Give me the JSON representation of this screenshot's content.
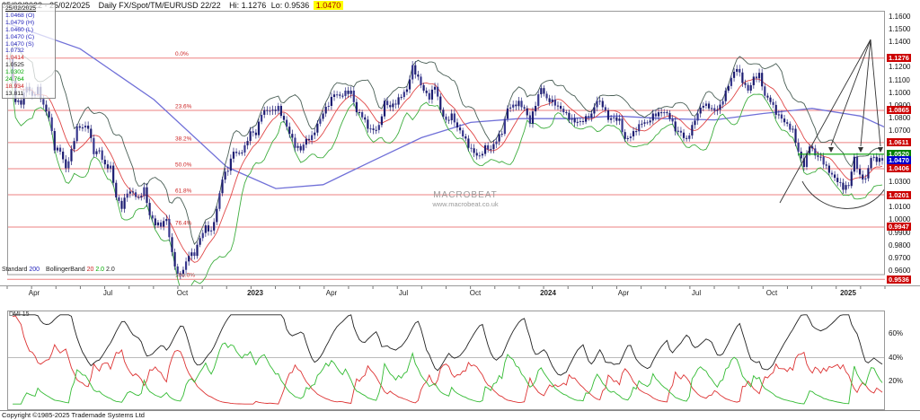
{
  "header": {
    "date_range": "25/02/2022 - 25/02/2025",
    "instrument": "Daily FX/Spot/TM/EURUSD 22/22",
    "hi": "Hi: 1.1276",
    "lo": "Lo: 0.9536",
    "last": "1.0470"
  },
  "legend_box": {
    "date": "25/02/2025",
    "rows": [
      {
        "text": "1.0468 (O)",
        "color": "#2222bb"
      },
      {
        "text": "1.0479 (H)",
        "color": "#2222bb"
      },
      {
        "text": "1.0460 (L)",
        "color": "#2222bb"
      },
      {
        "text": "1.0470 (C)",
        "color": "#2222bb"
      },
      {
        "text": "1.0470 (S)",
        "color": "#2222bb"
      },
      {
        "text": "1.0732",
        "color": "#2222bb"
      },
      {
        "text": "1.0414",
        "color": "#cc2222"
      },
      {
        "text": "1.0525",
        "color": "#111111"
      },
      {
        "text": "1.0302",
        "color": "#00aa00"
      },
      {
        "text": "24.764",
        "color": "#00aa00"
      },
      {
        "text": "18.934",
        "color": "#cc2222"
      },
      {
        "text": "13.811",
        "color": "#111111"
      }
    ]
  },
  "watermark": {
    "title": "MACROBEAT",
    "url": "www.macrobeat.co.uk"
  },
  "indicator_legend": {
    "segments": [
      {
        "text": "Standard ",
        "color": "#222222"
      },
      {
        "text": "200",
        "color": "#2222bb"
      },
      {
        "text": " BollingerBand ",
        "color": "#222222"
      },
      {
        "text": "20",
        "color": "#cc2222"
      },
      {
        "text": " 2.0",
        "color": "#00aa00"
      },
      {
        "text": " 2.0",
        "color": "#222222"
      }
    ]
  },
  "dmi_panel": {
    "label": "DMI 15",
    "ticks": [
      {
        "text": "60%",
        "v": 60
      },
      {
        "text": "40%",
        "v": 40
      },
      {
        "text": "20%",
        "v": 20
      }
    ]
  },
  "footer": {
    "copyright": "Copyright ©1985-2025 Trademade Systems Ltd"
  },
  "time_axis": {
    "labels": [
      {
        "text": "Apr",
        "f": 0.031
      },
      {
        "text": "Jul",
        "f": 0.115
      },
      {
        "text": "Oct",
        "f": 0.2
      },
      {
        "text": "2023",
        "f": 0.282,
        "bold": true
      },
      {
        "text": "Apr",
        "f": 0.369
      },
      {
        "text": "Jul",
        "f": 0.451
      },
      {
        "text": "Oct",
        "f": 0.533
      },
      {
        "text": "2024",
        "f": 0.616,
        "bold": true
      },
      {
        "text": "Apr",
        "f": 0.702
      },
      {
        "text": "Jul",
        "f": 0.785
      },
      {
        "text": "Oct",
        "f": 0.871
      },
      {
        "text": "2025",
        "f": 0.958,
        "bold": true
      }
    ]
  },
  "price_axis": {
    "plain_ticks": [
      1.16,
      1.15,
      1.14,
      1.12,
      1.11,
      1.1,
      1.09,
      1.08,
      1.07,
      1.03,
      1.01,
      1.0,
      0.99,
      0.98,
      0.97,
      0.96
    ],
    "highlights": [
      {
        "v": 1.1276,
        "bg": "#cc0000"
      },
      {
        "v": 1.0865,
        "bg": "#cc0000"
      },
      {
        "v": 1.0611,
        "bg": "#cc0000"
      },
      {
        "v": 1.052,
        "bg": "#008000"
      },
      {
        "v": 1.047,
        "bg": "#0000cc"
      },
      {
        "v": 1.0406,
        "bg": "#cc0000"
      },
      {
        "v": 1.0201,
        "bg": "#cc0000"
      },
      {
        "v": 0.9947,
        "bg": "#cc0000"
      },
      {
        "v": 0.9536,
        "bg": "#cc0000"
      }
    ]
  },
  "chart_data": {
    "type": "candlestick",
    "title": "Daily FX/Spot/TM/EURUSD",
    "x_start": "25/02/2022",
    "x_end": "25/02/2025",
    "hi": 1.1276,
    "lo": 0.9536,
    "last_close": 1.047,
    "axis": {
      "price_top": 1.16483,
      "price_bottom": 0.95727
    },
    "close_weekly": [
      1.127,
      1.093,
      1.091,
      1.105,
      1.098,
      1.105,
      1.091,
      1.081,
      1.055,
      1.054,
      1.041,
      1.056,
      1.074,
      1.073,
      1.072,
      1.052,
      1.055,
      1.044,
      1.043,
      1.018,
      1.009,
      1.021,
      1.022,
      1.018,
      1.026,
      1.004,
      0.996,
      0.995,
      1.001,
      0.975,
      0.958,
      0.961,
      0.972,
      0.972,
      0.986,
      0.996,
      0.992,
      1.009,
      1.032,
      1.039,
      1.054,
      1.053,
      1.059,
      1.07,
      1.067,
      1.083,
      1.086,
      1.087,
      1.09,
      1.079,
      1.068,
      1.057,
      1.055,
      1.064,
      1.067,
      1.076,
      1.084,
      1.09,
      1.099,
      1.098,
      1.102,
      1.102,
      1.085,
      1.081,
      1.072,
      1.071,
      1.075,
      1.094,
      1.089,
      1.091,
      1.097,
      1.103,
      1.122,
      1.113,
      1.102,
      1.095,
      1.105,
      1.087,
      1.079,
      1.084,
      1.073,
      1.066,
      1.057,
      1.053,
      1.051,
      1.059,
      1.056,
      1.062,
      1.068,
      1.088,
      1.091,
      1.094,
      1.088,
      1.076,
      1.09,
      1.104,
      1.096,
      1.095,
      1.09,
      1.085,
      1.079,
      1.077,
      1.078,
      1.082,
      1.084,
      1.094,
      1.089,
      1.079,
      1.081,
      1.08,
      1.064,
      1.066,
      1.07,
      1.076,
      1.077,
      1.084,
      1.085,
      1.085,
      1.08,
      1.07,
      1.069,
      1.064,
      1.075,
      1.084,
      1.09,
      1.088,
      1.086,
      1.091,
      1.102,
      1.112,
      1.119,
      1.108,
      1.102,
      1.113,
      1.116,
      1.098,
      1.093,
      1.083,
      1.08,
      1.076,
      1.072,
      1.054,
      1.042,
      1.058,
      1.051,
      1.05,
      1.043,
      1.036,
      1.03,
      1.024,
      1.027,
      1.05,
      1.036,
      1.033,
      1.049,
      1.046,
      1.047
    ],
    "ma200_points": [
      [
        0,
        1.155
      ],
      [
        0.083,
        1.135
      ],
      [
        0.167,
        1.095
      ],
      [
        0.25,
        1.042
      ],
      [
        0.306,
        1.025
      ],
      [
        0.36,
        1.028
      ],
      [
        0.417,
        1.047
      ],
      [
        0.472,
        1.065
      ],
      [
        0.528,
        1.077
      ],
      [
        0.583,
        1.08
      ],
      [
        0.639,
        1.08
      ],
      [
        0.694,
        1.082
      ],
      [
        0.75,
        1.08
      ],
      [
        0.806,
        1.079
      ],
      [
        0.861,
        1.084
      ],
      [
        0.917,
        1.088
      ],
      [
        0.972,
        1.082
      ],
      [
        1,
        1.0732
      ]
    ],
    "bollinger": {
      "period": 20,
      "mult": 2.0,
      "last_mid": 1.0414,
      "last_upper": 1.0525,
      "last_lower": 1.0302
    },
    "fib_levels": [
      {
        "pct": "0.0%",
        "price": 1.1276
      },
      {
        "pct": "23.6%",
        "price": 1.0865
      },
      {
        "pct": "38.2%",
        "price": 1.0611
      },
      {
        "pct": "50.0%",
        "price": 1.0406
      },
      {
        "pct": "61.8%",
        "price": 1.0201
      },
      {
        "pct": "76.4%",
        "price": 0.9947
      },
      {
        "pct": "100.0%",
        "price": 0.9536
      }
    ],
    "support_line_price": 1.052,
    "dmi": {
      "period": 15,
      "plus_di": 24.764,
      "minus_di": 18.934,
      "adx": 13.811
    },
    "colors": {
      "candle": "#1d1d72",
      "candle_alt": "#38388e",
      "ma200": "#7070d8",
      "boll_mid": "#e04848",
      "boll_upper": "#4a5f56",
      "boll_lower": "#3fae3f",
      "fib": "#ee8080",
      "fib_label": "#cc2222",
      "support": "#00a000",
      "annotation": "#333333",
      "dmi_plus": "#33bb33",
      "dmi_minus": "#dd3333",
      "dmi_adx": "#222222"
    }
  }
}
